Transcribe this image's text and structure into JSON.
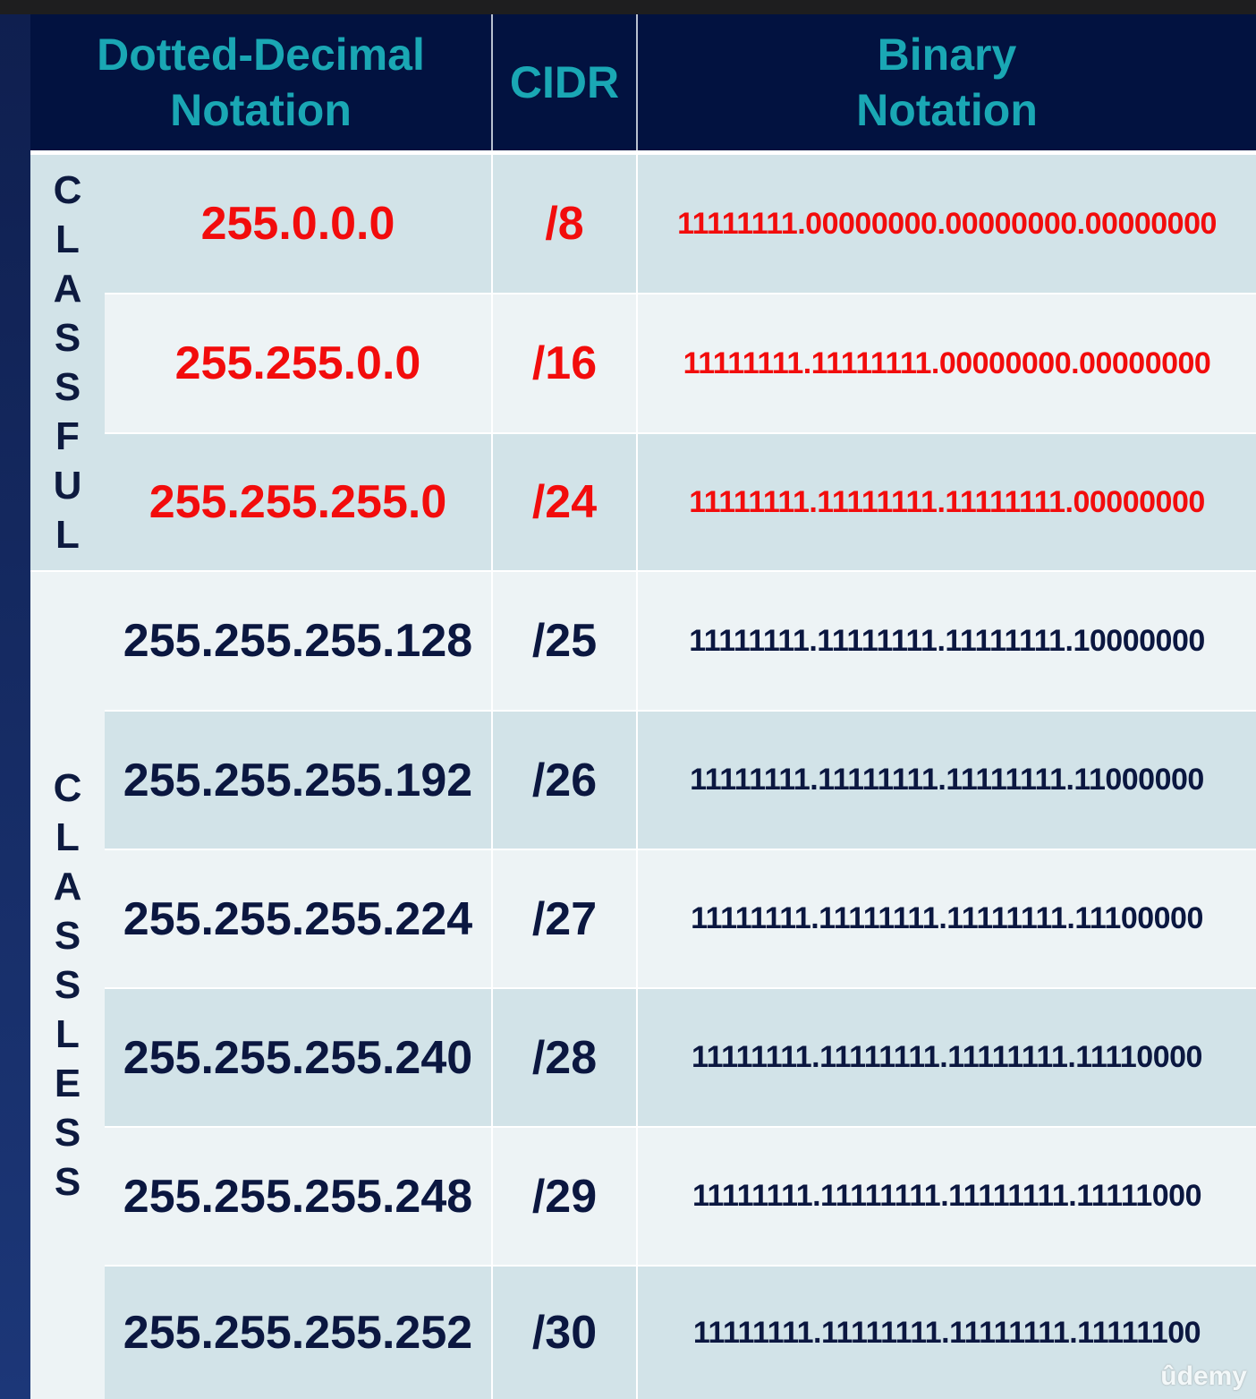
{
  "header": {
    "dotted_line1": "Dotted-Decimal",
    "dotted_line2": "Notation",
    "cidr": "CIDR",
    "binary_line1": "Binary",
    "binary_line2": "Notation"
  },
  "groups": {
    "classful": [
      "C",
      "L",
      "A",
      "S",
      "S",
      "F",
      "U",
      "L"
    ],
    "classless": [
      "C",
      "L",
      "A",
      "S",
      "S",
      "L",
      "E",
      "S",
      "S"
    ]
  },
  "rows": [
    {
      "dotted": "255.0.0.0",
      "cidr": "/8",
      "binary": "11111111.00000000.00000000.00000000"
    },
    {
      "dotted": "255.255.0.0",
      "cidr": "/16",
      "binary": "11111111.11111111.00000000.00000000"
    },
    {
      "dotted": "255.255.255.0",
      "cidr": "/24",
      "binary": "11111111.11111111.11111111.00000000"
    },
    {
      "dotted": "255.255.255.128",
      "cidr": "/25",
      "binary": "11111111.11111111.11111111.10000000"
    },
    {
      "dotted": "255.255.255.192",
      "cidr": "/26",
      "binary": "11111111.11111111.11111111.11000000"
    },
    {
      "dotted": "255.255.255.224",
      "cidr": "/27",
      "binary": "11111111.11111111.11111111.11100000"
    },
    {
      "dotted": "255.255.255.240",
      "cidr": "/28",
      "binary": "11111111.11111111.11111111.11110000"
    },
    {
      "dotted": "255.255.255.248",
      "cidr": "/29",
      "binary": "11111111.11111111.11111111.11111000"
    },
    {
      "dotted": "255.255.255.252",
      "cidr": "/30",
      "binary": "11111111.11111111.11111111.11111100"
    }
  ],
  "watermark": "ûdemy",
  "colors": {
    "header_bg": "#021240",
    "header_text": "#1aa7b4",
    "classful_text": "#f20c0c",
    "classless_text": "#0b1740"
  }
}
